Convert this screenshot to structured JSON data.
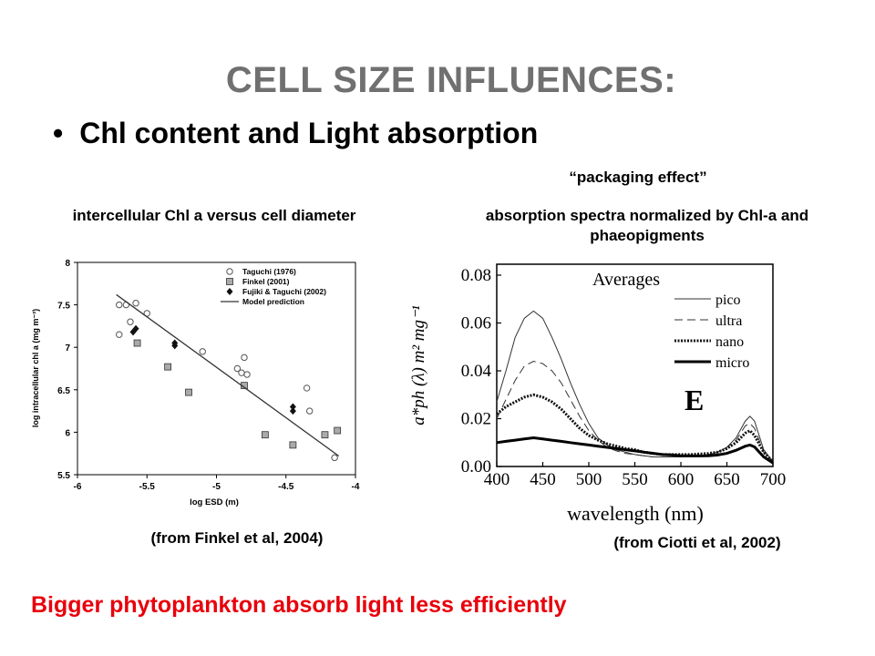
{
  "slide": {
    "title": "CELL SIZE INFLUENCES:",
    "bullet": "Chl content and Light absorption",
    "packaging_note": "“packaging effect”",
    "left_caption": "intercellular Chl a versus cell diameter",
    "right_caption": "absorption spectra normalized by Chl-a and phaeopigments",
    "left_source": "(from Finkel et al, 2004)",
    "right_source": "(from Ciotti et al, 2002)",
    "conclusion": "Bigger phytoplankton absorb light less efficiently",
    "colors": {
      "title": "#707070",
      "conclusion": "#e8000b",
      "grid_frame": "#000000"
    }
  },
  "chart_data": [
    {
      "type": "scatter",
      "xlabel": "log ESD (m)",
      "ylabel": "log intracellular chl a (mg m⁻³)",
      "xlim": [
        -6,
        -4
      ],
      "ylim": [
        5.5,
        8
      ],
      "xticks": [
        -6,
        -5.5,
        -5,
        -4.5,
        -4
      ],
      "xtick_labels": [
        "-6",
        "-5.5",
        "-5",
        "-4.5",
        "-4"
      ],
      "yticks": [
        5.5,
        6,
        6.5,
        7,
        7.5,
        8
      ],
      "ytick_labels": [
        "5.5",
        "6",
        "6.5",
        "7",
        "7.5",
        "8"
      ],
      "grid": false,
      "legend_position": "top-right",
      "series": [
        {
          "name": "Taguchi (1976)",
          "marker": "open-circle",
          "points": [
            [
              -5.7,
              7.5
            ],
            [
              -5.65,
              7.5
            ],
            [
              -5.58,
              7.52
            ],
            [
              -5.62,
              7.3
            ],
            [
              -5.7,
              7.15
            ],
            [
              -5.5,
              7.4
            ],
            [
              -5.1,
              6.95
            ],
            [
              -4.85,
              6.75
            ],
            [
              -4.82,
              6.7
            ],
            [
              -4.8,
              6.88
            ],
            [
              -4.78,
              6.68
            ],
            [
              -4.35,
              6.52
            ],
            [
              -4.33,
              6.25
            ],
            [
              -4.15,
              5.7
            ]
          ]
        },
        {
          "name": "Finkel (2001)",
          "marker": "square",
          "points": [
            [
              -5.57,
              7.05
            ],
            [
              -5.35,
              6.77
            ],
            [
              -5.2,
              6.47
            ],
            [
              -4.8,
              6.55
            ],
            [
              -4.65,
              5.97
            ],
            [
              -4.45,
              5.85
            ],
            [
              -4.22,
              5.97
            ],
            [
              -4.13,
              6.02
            ]
          ]
        },
        {
          "name": "Fujiki & Taguchi (2002)",
          "marker": "filled-diamond",
          "points": [
            [
              -5.6,
              7.18
            ],
            [
              -5.58,
              7.22
            ],
            [
              -5.3,
              7.05
            ],
            [
              -5.3,
              7.02
            ],
            [
              -4.45,
              6.25
            ],
            [
              -4.45,
              6.3
            ]
          ]
        },
        {
          "name": "Model prediction",
          "marker": "line",
          "points": [
            [
              -5.72,
              7.62
            ],
            [
              -4.12,
              5.72
            ]
          ]
        }
      ]
    },
    {
      "type": "line",
      "xlabel": "wavelength (nm)",
      "ylabel": "a*ph (λ)  m² mg⁻¹",
      "panel_label": "E",
      "legend_title": "Averages",
      "xlim": [
        400,
        700
      ],
      "ylim": [
        0,
        0.08
      ],
      "xticks": [
        400,
        450,
        500,
        550,
        600,
        650,
        700
      ],
      "xtick_labels": [
        "400",
        "450",
        "500",
        "550",
        "600",
        "650",
        "700"
      ],
      "yticks": [
        0,
        0.02,
        0.04,
        0.06,
        0.08
      ],
      "ytick_labels": [
        "0.00",
        "0.02",
        "0.04",
        "0.06",
        "0.08"
      ],
      "grid": false,
      "legend_position": "top-right",
      "x": [
        400,
        410,
        420,
        430,
        440,
        450,
        460,
        470,
        480,
        490,
        500,
        510,
        520,
        530,
        540,
        550,
        560,
        570,
        580,
        590,
        600,
        610,
        620,
        630,
        640,
        650,
        660,
        670,
        675,
        680,
        690,
        700
      ],
      "series": [
        {
          "name": "pico",
          "style": "thin-solid",
          "values": [
            0.027,
            0.04,
            0.054,
            0.062,
            0.065,
            0.062,
            0.054,
            0.045,
            0.035,
            0.026,
            0.018,
            0.012,
            0.009,
            0.007,
            0.006,
            0.005,
            0.0045,
            0.004,
            0.004,
            0.004,
            0.004,
            0.0042,
            0.0045,
            0.005,
            0.006,
            0.008,
            0.012,
            0.019,
            0.021,
            0.019,
            0.007,
            0.002
          ]
        },
        {
          "name": "ultra",
          "style": "dashed",
          "values": [
            0.02,
            0.028,
            0.036,
            0.042,
            0.044,
            0.043,
            0.04,
            0.035,
            0.028,
            0.021,
            0.015,
            0.011,
            0.008,
            0.0065,
            0.0055,
            0.005,
            0.0045,
            0.004,
            0.004,
            0.004,
            0.004,
            0.0042,
            0.0045,
            0.005,
            0.006,
            0.008,
            0.011,
            0.017,
            0.018,
            0.016,
            0.006,
            0.002
          ]
        },
        {
          "name": "nano",
          "style": "dotted-thick",
          "values": [
            0.022,
            0.025,
            0.027,
            0.029,
            0.03,
            0.029,
            0.027,
            0.024,
            0.02,
            0.016,
            0.013,
            0.011,
            0.0095,
            0.0085,
            0.0075,
            0.007,
            0.006,
            0.0055,
            0.005,
            0.005,
            0.005,
            0.005,
            0.0052,
            0.0055,
            0.006,
            0.0075,
            0.01,
            0.014,
            0.015,
            0.013,
            0.006,
            0.002
          ]
        },
        {
          "name": "micro",
          "style": "thick-solid",
          "values": [
            0.01,
            0.0105,
            0.011,
            0.0115,
            0.012,
            0.0115,
            0.011,
            0.0105,
            0.01,
            0.0095,
            0.009,
            0.0085,
            0.008,
            0.0075,
            0.007,
            0.0065,
            0.006,
            0.0055,
            0.005,
            0.0048,
            0.0045,
            0.0044,
            0.0044,
            0.0045,
            0.0048,
            0.0055,
            0.0068,
            0.0085,
            0.009,
            0.0082,
            0.004,
            0.0015
          ]
        }
      ]
    }
  ]
}
